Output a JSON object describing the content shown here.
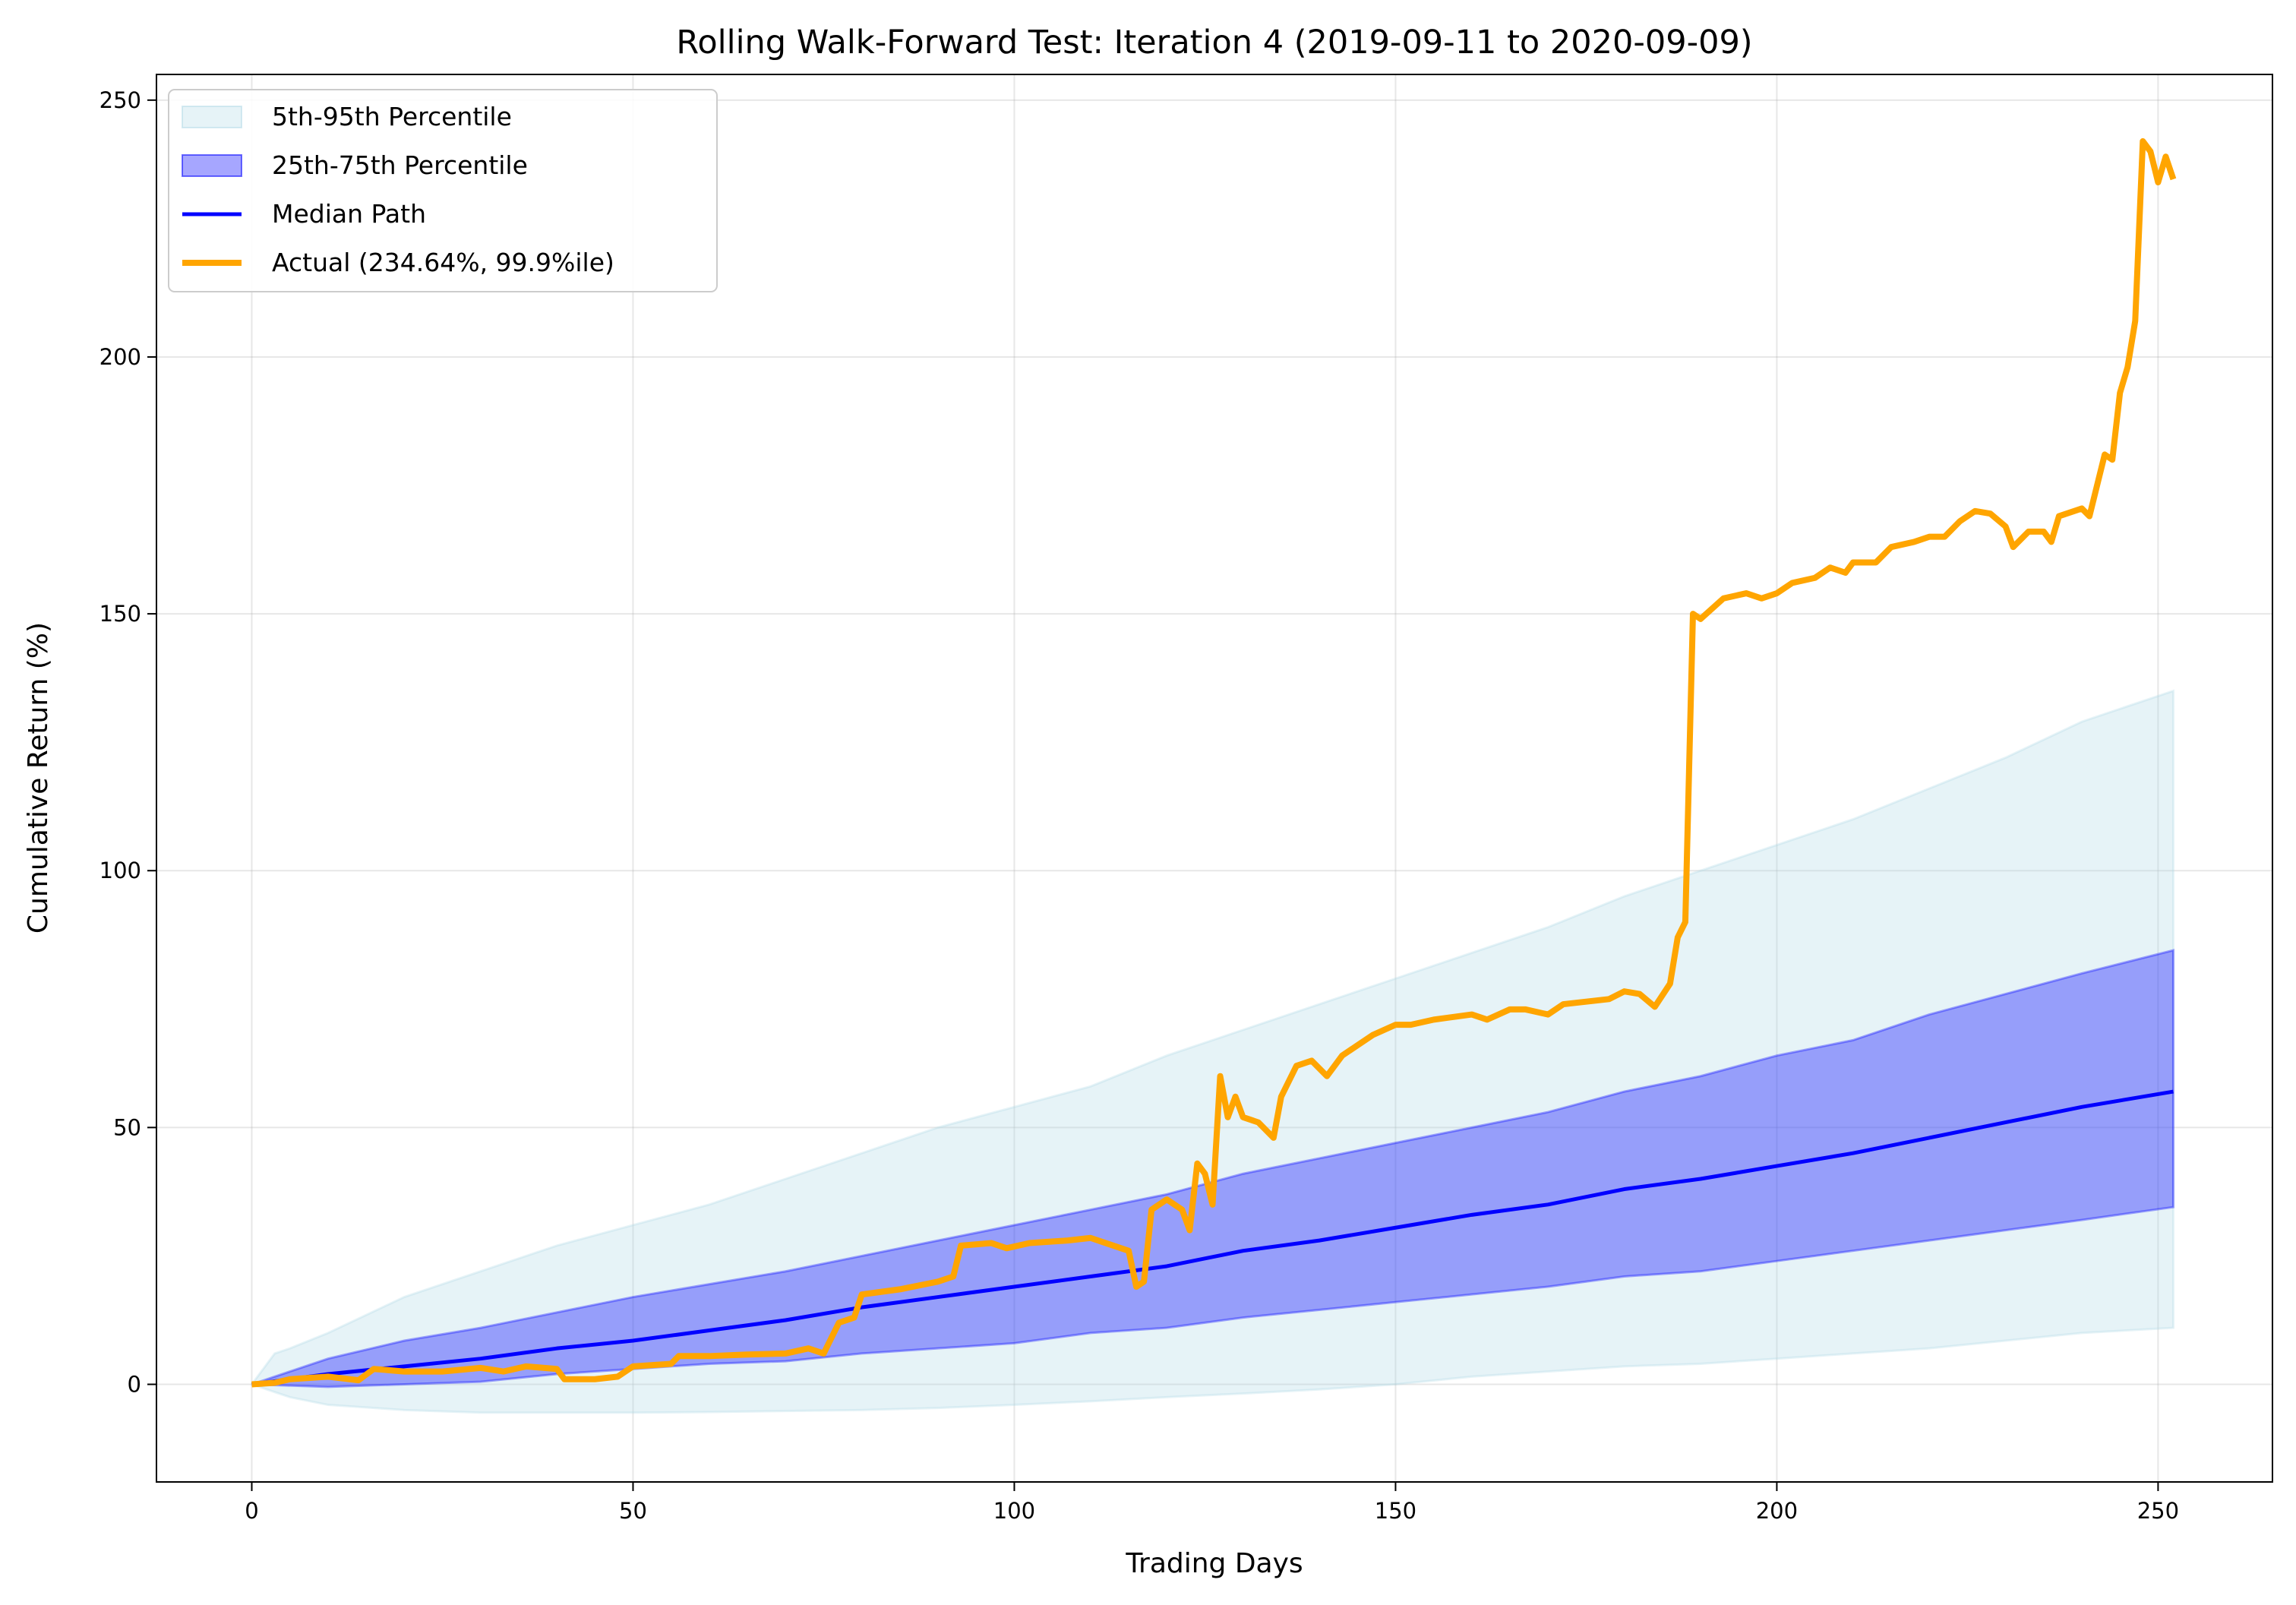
{
  "chart_data": {
    "type": "line",
    "title": "Rolling Walk-Forward Test: Iteration 4 (2019-09-11 to 2020-09-09)",
    "xlabel": "Trading Days",
    "ylabel": "Cumulative Return (%)",
    "xlim": [
      -12.5,
      265
    ],
    "ylim": [
      -19,
      255
    ],
    "xticks": [
      0,
      50,
      100,
      150,
      200,
      250
    ],
    "yticks": [
      0,
      50,
      100,
      150,
      200,
      250
    ],
    "grid": true,
    "legend_position": "top-left",
    "bands": [
      {
        "name": "5th-95th Percentile",
        "color": "#add8e6",
        "opacity": 0.3,
        "x": [
          0,
          3,
          5,
          10,
          20,
          30,
          40,
          50,
          60,
          70,
          80,
          90,
          100,
          110,
          120,
          130,
          140,
          150,
          160,
          170,
          180,
          190,
          200,
          210,
          220,
          230,
          240,
          252
        ],
        "lower": [
          0,
          -1.5,
          -2.5,
          -4,
          -5,
          -5.5,
          -5.5,
          -5.5,
          -5.4,
          -5.2,
          -5,
          -4.6,
          -4,
          -3.3,
          -2.5,
          -1.8,
          -1,
          0,
          1.5,
          2.5,
          3.5,
          4,
          5,
          6,
          7,
          8.5,
          10,
          11
        ],
        "upper": [
          0,
          6,
          7,
          10,
          17,
          22,
          27,
          31,
          35,
          40,
          45,
          50,
          54,
          58,
          64,
          69,
          74,
          79,
          84,
          89,
          95,
          100,
          105,
          110,
          116,
          122,
          129,
          135
        ]
      },
      {
        "name": "25th-75th Percentile",
        "color": "#0000ff",
        "opacity": 0.35,
        "x": [
          0,
          10,
          20,
          30,
          40,
          50,
          60,
          70,
          80,
          90,
          100,
          110,
          120,
          130,
          140,
          150,
          160,
          170,
          180,
          190,
          200,
          210,
          220,
          230,
          240,
          252
        ],
        "lower": [
          0,
          -0.5,
          0,
          0.5,
          2,
          3,
          4,
          4.5,
          6,
          7,
          8,
          10,
          11,
          13,
          14.5,
          16,
          17.5,
          19,
          21,
          22,
          24,
          26,
          28,
          30,
          32,
          34.5
        ],
        "upper": [
          0,
          5,
          8.5,
          11,
          14,
          17,
          19.5,
          22,
          25,
          28,
          31,
          34,
          37,
          41,
          44,
          47,
          50,
          53,
          57,
          60,
          64,
          67,
          72,
          76,
          80,
          84.5
        ]
      }
    ],
    "series": [
      {
        "name": "Median Path",
        "color": "#0000ff",
        "x": [
          0,
          10,
          20,
          30,
          40,
          50,
          60,
          70,
          80,
          90,
          100,
          110,
          120,
          130,
          140,
          150,
          160,
          170,
          180,
          190,
          200,
          210,
          220,
          230,
          240,
          252
        ],
        "y": [
          0,
          2,
          3.5,
          5,
          7,
          8.5,
          10.5,
          12.5,
          15,
          17,
          19,
          21,
          23,
          26,
          28,
          30.5,
          33,
          35,
          38,
          40,
          42.5,
          45,
          48,
          51,
          54,
          57
        ]
      },
      {
        "name": "Actual (234.64%, 99.9%ile)",
        "color": "#ffa500",
        "x": [
          0,
          3,
          5,
          10,
          14,
          16,
          20,
          25,
          30,
          33,
          36,
          40,
          41,
          45,
          48,
          50,
          55,
          56,
          60,
          65,
          70,
          73,
          75,
          77,
          79,
          80,
          85,
          90,
          92,
          93,
          97,
          99,
          102,
          107,
          110,
          113,
          115,
          116,
          117,
          118,
          120,
          122,
          123,
          124,
          125,
          126,
          127,
          128,
          129,
          130,
          132,
          134,
          135,
          137,
          139,
          141,
          143,
          145,
          147,
          150,
          152,
          155,
          160,
          162,
          165,
          167,
          170,
          172,
          175,
          178,
          180,
          182,
          184,
          186,
          187,
          188,
          189,
          190,
          193,
          196,
          198,
          200,
          202,
          205,
          207,
          209,
          210,
          213,
          215,
          218,
          220,
          222,
          224,
          226,
          228,
          230,
          231,
          233,
          235,
          236,
          237,
          240,
          241,
          243,
          244,
          245,
          246,
          247,
          248,
          249,
          250,
          251,
          252
        ],
        "y": [
          0,
          0.3,
          1,
          1.5,
          0.8,
          3,
          2.5,
          2.5,
          3.2,
          2.5,
          3.5,
          3,
          1,
          1,
          1.5,
          3.5,
          4,
          5.5,
          5.5,
          5.8,
          6,
          7,
          6,
          12,
          13,
          17.5,
          18.5,
          20,
          21,
          27,
          27.5,
          26.5,
          27.5,
          28,
          28.5,
          27,
          26,
          19,
          20,
          34,
          36,
          34,
          30,
          43,
          41,
          35,
          60,
          52,
          56,
          52,
          51,
          48,
          56,
          62,
          63,
          60,
          64,
          66,
          68,
          70,
          70,
          71,
          72,
          71,
          73,
          73,
          72,
          74,
          74.5,
          75,
          76.5,
          76,
          73.5,
          78,
          87,
          90,
          150,
          149,
          153,
          154,
          153,
          154,
          156,
          157,
          159,
          158,
          160,
          160,
          163,
          164,
          165,
          165,
          168,
          170,
          169.5,
          167,
          163,
          166,
          166,
          164,
          169,
          170.5,
          169,
          181,
          180,
          193,
          198,
          207,
          242,
          240,
          234,
          239,
          234.6
        ]
      }
    ]
  }
}
